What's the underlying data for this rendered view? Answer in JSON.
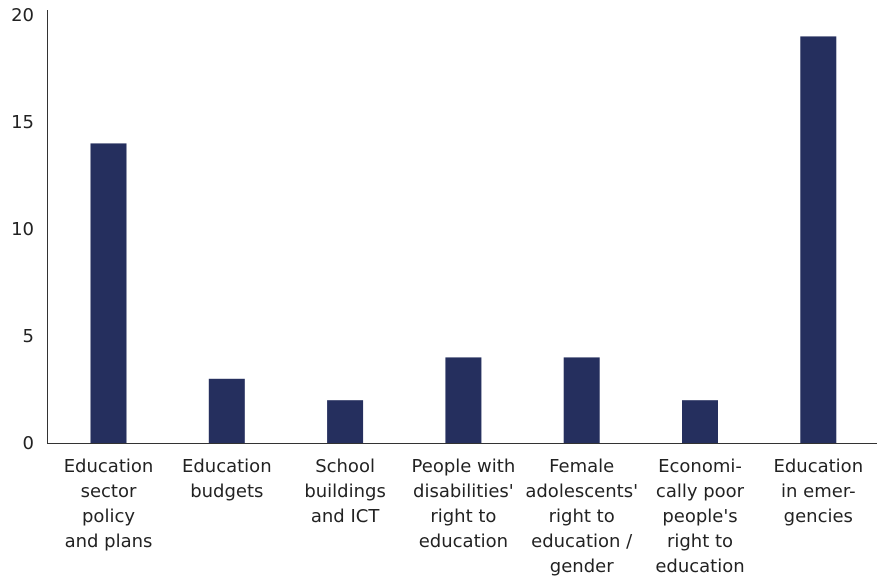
{
  "chart_data": {
    "type": "bar",
    "categories": [
      [
        "Education",
        "sector",
        "policy",
        "and plans"
      ],
      [
        "Education",
        "budgets"
      ],
      [
        "School",
        "buildings",
        "and ICT"
      ],
      [
        "People with",
        "disabilities'",
        "right to",
        "education"
      ],
      [
        "Female",
        "adolescents'",
        "right to",
        "education /",
        "gender"
      ],
      [
        "Economi-",
        "cally poor",
        "people's",
        "right to",
        "education"
      ],
      [
        "Education",
        "in emer-",
        "gencies"
      ]
    ],
    "values": [
      14,
      3,
      2,
      4,
      4,
      2,
      19
    ],
    "yticks": [
      "0",
      "5",
      "10",
      "15",
      "20"
    ],
    "ylim": [
      0,
      20
    ],
    "title": "",
    "xlabel": "",
    "ylabel": "",
    "grid": false,
    "bar_color": "#252f5e",
    "axis_color": "#333333"
  }
}
